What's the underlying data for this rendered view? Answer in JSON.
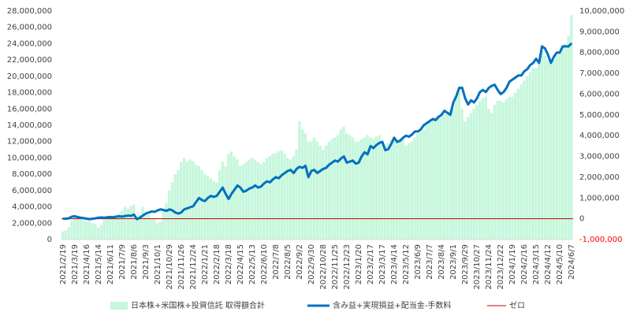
{
  "chart_data": {
    "type": "bar_line",
    "categories": [
      "2021/2/19",
      null,
      null,
      null,
      "2021/3/19",
      null,
      null,
      null,
      "2021/4/16",
      null,
      null,
      null,
      "2021/5/14",
      null,
      null,
      null,
      "2021/6/11",
      null,
      null,
      null,
      "2021/7/9",
      null,
      null,
      null,
      "2021/8/6",
      null,
      null,
      null,
      "2021/9/3",
      null,
      null,
      null,
      "2021/10/1",
      null,
      null,
      null,
      "2021/10/29",
      null,
      null,
      null,
      "2021/11/26",
      null,
      null,
      null,
      "2021/12/24",
      null,
      null,
      null,
      "2022/1/21",
      null,
      null,
      null,
      "2022/2/18",
      null,
      null,
      null,
      "2022/3/18",
      null,
      null,
      null,
      "2022/4/15",
      null,
      null,
      null,
      "2022/5/13",
      null,
      null,
      null,
      "2022/6/10",
      null,
      null,
      null,
      "2022/7/8",
      null,
      null,
      null,
      "2022/8/5",
      null,
      null,
      null,
      "2022/9/2",
      null,
      null,
      null,
      "2022/9/30",
      null,
      null,
      null,
      "2022/10/28",
      null,
      null,
      null,
      "2022/11/25",
      null,
      null,
      null,
      "2022/12/23",
      null,
      null,
      null,
      "2023/1/20",
      null,
      null,
      null,
      "2023/2/17",
      null,
      null,
      null,
      "2023/3/17",
      null,
      null,
      null,
      "2023/4/14",
      null,
      null,
      null,
      "2023/5/12",
      null,
      null,
      null,
      "2023/6/9",
      null,
      null,
      null,
      "2023/7/7",
      null,
      null,
      null,
      "2023/8/4",
      null,
      null,
      null,
      "2023/9/1",
      null,
      null,
      null,
      "2023/9/29",
      null,
      null,
      null,
      "2023/10/27",
      null,
      null,
      null,
      "2023/11/24",
      null,
      null,
      null,
      "2023/12/22",
      null,
      null,
      null,
      "2024/1/19",
      null,
      null,
      null,
      "2024/2/16",
      null,
      null,
      null,
      "2024/3/15",
      null,
      null,
      null,
      "2024/4/12",
      null,
      null,
      null,
      "2024/5/10",
      null,
      null,
      null,
      "2024/6/7"
    ],
    "series": [
      {
        "name": "日本株+米国株+投資信託 取得額合計",
        "type": "bar",
        "color": "#c6f7dc",
        "values": [
          1000000,
          1100000,
          1500000,
          2300000,
          2800000,
          2600000,
          2500000,
          2400000,
          2200000,
          2300000,
          2000000,
          1900000,
          1400000,
          1800000,
          2500000,
          2600000,
          2800000,
          2900000,
          3000000,
          3200000,
          3500000,
          4000000,
          3800000,
          4100000,
          4300000,
          2800000,
          3000000,
          4000000,
          3200000,
          3000000,
          2600000,
          2500000,
          2000000,
          2200000,
          3500000,
          4500000,
          6000000,
          7000000,
          8000000,
          8500000,
          9500000,
          10000000,
          9500000,
          9800000,
          9600000,
          9200000,
          9000000,
          8500000,
          8000000,
          7800000,
          7500000,
          7200000,
          7000000,
          8500000,
          9500000,
          9000000,
          10500000,
          10800000,
          10200000,
          9800000,
          9000000,
          9200000,
          9500000,
          9800000,
          10000000,
          9800000,
          9500000,
          9200000,
          9500000,
          10000000,
          10200000,
          10500000,
          10600000,
          10800000,
          10900000,
          10500000,
          10000000,
          9800000,
          10200000,
          11000000,
          14500000,
          13500000,
          13000000,
          12000000,
          12000000,
          12500000,
          12000000,
          11500000,
          11000000,
          11500000,
          12000000,
          12300000,
          12500000,
          12800000,
          13500000,
          13800000,
          13000000,
          12800000,
          12500000,
          12000000,
          12000000,
          12300000,
          12500000,
          12800000,
          12500000,
          12300000,
          12600000,
          12800000,
          12000000,
          11500000,
          11800000,
          12200000,
          12000000,
          12200000,
          12400000,
          12300000,
          11500000,
          11800000,
          12000000,
          12500000,
          13000000,
          13300000,
          13500000,
          14000000,
          14500000,
          14800000,
          15000000,
          15200000,
          15500000,
          15300000,
          15600000,
          16000000,
          16000000,
          17500000,
          18000000,
          16000000,
          14500000,
          15000000,
          15500000,
          16000000,
          16500000,
          17000000,
          17300000,
          17500000,
          16000000,
          15500000,
          16500000,
          17000000,
          17000000,
          16800000,
          17200000,
          17500000,
          17500000,
          18000000,
          18500000,
          19000000,
          19500000,
          20000000,
          20500000,
          21000000,
          21000000,
          21500000,
          23000000,
          22500000,
          22000000,
          21500000,
          22000000,
          22500000,
          23000000,
          23500000,
          24000000,
          25000000,
          27500000
        ]
      },
      {
        "name": "含み益+実現損益+配当金-手数料",
        "type": "line",
        "axis": "y2",
        "color": "#0070c0",
        "values": [
          0,
          0,
          20000,
          100000,
          120000,
          80000,
          50000,
          30000,
          0,
          -20000,
          0,
          20000,
          50000,
          60000,
          50000,
          70000,
          80000,
          70000,
          100000,
          120000,
          100000,
          130000,
          150000,
          140000,
          200000,
          -20000,
          50000,
          150000,
          250000,
          300000,
          350000,
          330000,
          400000,
          450000,
          420000,
          380000,
          450000,
          400000,
          300000,
          250000,
          300000,
          450000,
          500000,
          550000,
          600000,
          800000,
          1000000,
          900000,
          850000,
          1000000,
          1100000,
          1050000,
          1100000,
          1300000,
          1500000,
          1200000,
          950000,
          1200000,
          1400000,
          1600000,
          1500000,
          1300000,
          1350000,
          1450000,
          1500000,
          1600000,
          1500000,
          1550000,
          1700000,
          1800000,
          1750000,
          1900000,
          2000000,
          1950000,
          2100000,
          2200000,
          2300000,
          2350000,
          2200000,
          2400000,
          2500000,
          2450000,
          2550000,
          2000000,
          2300000,
          2350000,
          2200000,
          2300000,
          2400000,
          2450000,
          2600000,
          2700000,
          2800000,
          2750000,
          2900000,
          3000000,
          2700000,
          2750000,
          2800000,
          2650000,
          2700000,
          3000000,
          3200000,
          3100000,
          3500000,
          3400000,
          3550000,
          3650000,
          3700000,
          3300000,
          3350000,
          3600000,
          3900000,
          3700000,
          3750000,
          3900000,
          4000000,
          3950000,
          4050000,
          4200000,
          4200000,
          4300000,
          4500000,
          4600000,
          4700000,
          4800000,
          4750000,
          4900000,
          5000000,
          5200000,
          5100000,
          5000000,
          5600000,
          5900000,
          6300000,
          6300000,
          5800000,
          5500000,
          5700000,
          5600000,
          5800000,
          6100000,
          6200000,
          6100000,
          6300000,
          6400000,
          6450000,
          6200000,
          6000000,
          6100000,
          6300000,
          6600000,
          6700000,
          6800000,
          6900000,
          6900000,
          7100000,
          7200000,
          7400000,
          7500000,
          7700000,
          7500000,
          8300000,
          8200000,
          7900000,
          7500000,
          7800000,
          8000000,
          8000000,
          8300000,
          8300000,
          8300000,
          8450000
        ]
      }
    ],
    "reference_line": {
      "name": "ゼロ",
      "value": 0,
      "axis": "y2",
      "color": "#c00000"
    },
    "ylim": [
      0,
      28000000
    ],
    "yticks": [
      {
        "value": 0,
        "label": "0"
      },
      {
        "value": 2000000,
        "label": "2,000,000"
      },
      {
        "value": 4000000,
        "label": "4,000,000"
      },
      {
        "value": 6000000,
        "label": "6,000,000"
      },
      {
        "value": 8000000,
        "label": "8,000,000"
      },
      {
        "value": 10000000,
        "label": "10,000,000"
      },
      {
        "value": 12000000,
        "label": "12,000,000"
      },
      {
        "value": 14000000,
        "label": "14,000,000"
      },
      {
        "value": 16000000,
        "label": "16,000,000"
      },
      {
        "value": 18000000,
        "label": "18,000,000"
      },
      {
        "value": 20000000,
        "label": "20,000,000"
      },
      {
        "value": 22000000,
        "label": "22,000,000"
      },
      {
        "value": 24000000,
        "label": "24,000,000"
      },
      {
        "value": 26000000,
        "label": "26,000,000"
      },
      {
        "value": 28000000,
        "label": "28,000,000"
      }
    ],
    "y2lim": [
      -1000000,
      10000000
    ],
    "y2ticks": [
      {
        "value": -1000000,
        "label": "-1,000,000"
      },
      {
        "value": 0,
        "label": "0"
      },
      {
        "value": 1000000,
        "label": "1,000,000"
      },
      {
        "value": 2000000,
        "label": "2,000,000"
      },
      {
        "value": 3000000,
        "label": "3,000,000"
      },
      {
        "value": 4000000,
        "label": "4,000,000"
      },
      {
        "value": 5000000,
        "label": "5,000,000"
      },
      {
        "value": 6000000,
        "label": "6,000,000"
      },
      {
        "value": 7000000,
        "label": "7,000,000"
      },
      {
        "value": 8000000,
        "label": "8,000,000"
      },
      {
        "value": 9000000,
        "label": "9,000,000"
      },
      {
        "value": 10000000,
        "label": "10,000,000"
      }
    ],
    "y2_negative_color": "#ff0000",
    "grid": false,
    "legend": "bottom"
  }
}
